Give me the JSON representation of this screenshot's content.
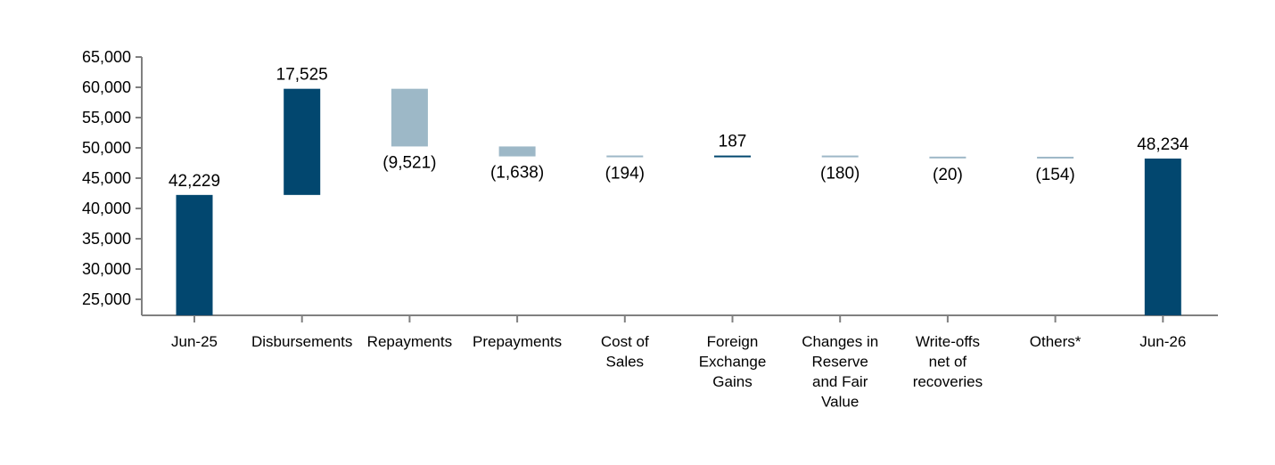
{
  "chart_data": {
    "type": "bar",
    "subtype": "waterfall",
    "categories": [
      [
        "Jun-25"
      ],
      [
        "Disbursements"
      ],
      [
        "Repayments"
      ],
      [
        "Prepayments"
      ],
      [
        "Cost of",
        "Sales"
      ],
      [
        "Foreign",
        "Exchange",
        "Gains"
      ],
      [
        "Changes in",
        "Reserve",
        "and Fair",
        "Value"
      ],
      [
        "Write-offs",
        "net of",
        "recoveries"
      ],
      [
        "Others*"
      ],
      [
        "Jun-26"
      ]
    ],
    "values": [
      42229,
      17525,
      -9521,
      -1638,
      -194,
      187,
      -180,
      -20,
      -154,
      48234
    ],
    "bar_kinds": [
      "total",
      "delta",
      "delta",
      "delta",
      "delta",
      "delta",
      "delta",
      "delta",
      "delta",
      "total"
    ],
    "data_labels": [
      "42,229",
      "17,525",
      "(9,521)",
      "(1,638)",
      "(194)",
      "187",
      "(180)",
      "(20)",
      "(154)",
      "48,234"
    ],
    "y_ticks": [
      "25,000",
      "30,000",
      "35,000",
      "40,000",
      "45,000",
      "50,000",
      "55,000",
      "60,000",
      "65,000"
    ],
    "y_tick_values": [
      25000,
      30000,
      35000,
      40000,
      45000,
      50000,
      55000,
      60000,
      65000
    ],
    "ylim": [
      22000,
      65000
    ],
    "grid": false,
    "colors": {
      "increase": "#02476f",
      "decrease": "#9db8c7",
      "total": "#02476f",
      "axis": "#808080"
    }
  }
}
